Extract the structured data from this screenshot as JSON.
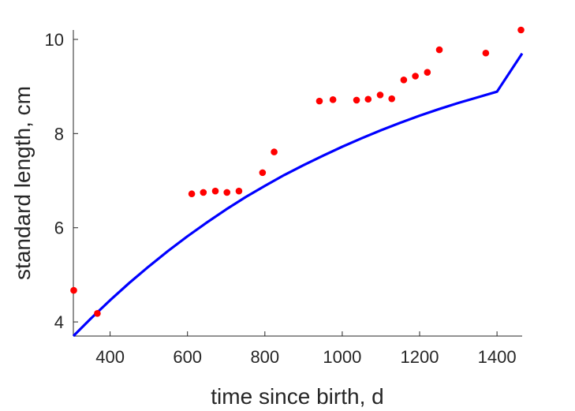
{
  "chart_data": {
    "type": "scatter",
    "xlabel": "time since birth, d",
    "ylabel": "standard length, cm",
    "xlim": [
      305,
      1465
    ],
    "ylim": [
      3.7,
      10.2
    ],
    "xticks": [
      400,
      600,
      800,
      1000,
      1200,
      1400
    ],
    "yticks": [
      4,
      6,
      8,
      10
    ],
    "grid": false,
    "legend": "none",
    "colors": {
      "points": "#ff0000",
      "fit": "#0000ff",
      "axis": "#262626"
    },
    "series": [
      {
        "type": "scatter",
        "points": [
          [
            306,
            4.67
          ],
          [
            367,
            4.18
          ],
          [
            611,
            6.72
          ],
          [
            641,
            6.75
          ],
          [
            672,
            6.78
          ],
          [
            702,
            6.75
          ],
          [
            733,
            6.78
          ],
          [
            794,
            7.17
          ],
          [
            824,
            7.61
          ],
          [
            941,
            8.69
          ],
          [
            976,
            8.72
          ],
          [
            1037,
            8.71
          ],
          [
            1067,
            8.73
          ],
          [
            1098,
            8.82
          ],
          [
            1128,
            8.74
          ],
          [
            1159,
            9.14
          ],
          [
            1189,
            9.22
          ],
          [
            1220,
            9.3
          ],
          [
            1251,
            9.78
          ],
          [
            1371,
            9.71
          ],
          [
            1462,
            10.2
          ]
        ]
      },
      {
        "type": "line",
        "points": [
          [
            305,
            3.7
          ],
          [
            350,
            4.07
          ],
          [
            400,
            4.46
          ],
          [
            450,
            4.83
          ],
          [
            500,
            5.18
          ],
          [
            550,
            5.51
          ],
          [
            600,
            5.82
          ],
          [
            650,
            6.11
          ],
          [
            700,
            6.39
          ],
          [
            750,
            6.65
          ],
          [
            800,
            6.89
          ],
          [
            850,
            7.12
          ],
          [
            900,
            7.33
          ],
          [
            950,
            7.53
          ],
          [
            1000,
            7.72
          ],
          [
            1050,
            7.9
          ],
          [
            1100,
            8.07
          ],
          [
            1150,
            8.23
          ],
          [
            1200,
            8.38
          ],
          [
            1250,
            8.52
          ],
          [
            1300,
            8.65
          ],
          [
            1350,
            8.77
          ],
          [
            1400,
            8.89
          ],
          [
            1465,
            9.7
          ]
        ]
      }
    ]
  }
}
